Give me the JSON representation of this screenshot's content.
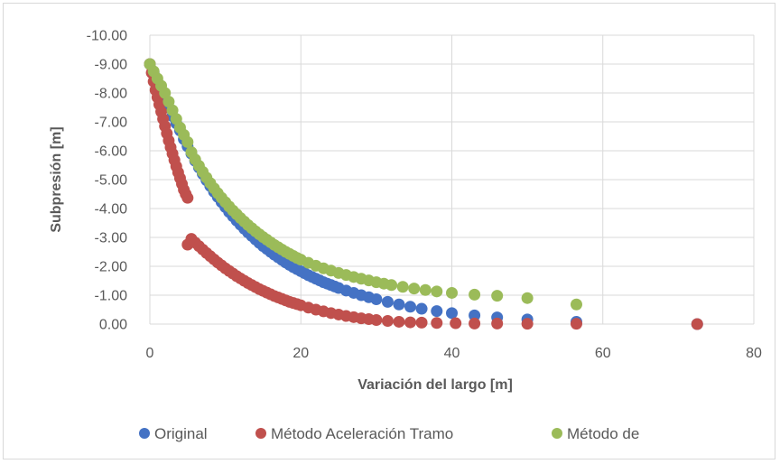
{
  "chart_data": {
    "type": "scatter",
    "title": "",
    "xlabel": "Variación del largo [m]",
    "ylabel": "Subpresión [m]",
    "xlim": [
      0,
      80
    ],
    "ylim": [
      0,
      -10
    ],
    "y_axis_reversed": true,
    "grid": true,
    "legend_position": "bottom",
    "x_ticks": [
      "0",
      "20",
      "40",
      "60",
      "80"
    ],
    "y_ticks": [
      "0.00",
      "-1.00",
      "-2.00",
      "-3.00",
      "-4.00",
      "-5.00",
      "-6.00",
      "-7.00",
      "-8.00",
      "-9.00",
      "-10.00"
    ],
    "series": [
      {
        "name": "Original",
        "color": "#4472c4",
        "points": [
          [
            0,
            -9.0
          ],
          [
            0.5,
            -8.7
          ],
          [
            1.0,
            -8.4
          ],
          [
            1.5,
            -8.1
          ],
          [
            2.0,
            -7.8
          ],
          [
            2.5,
            -7.5
          ],
          [
            3.0,
            -7.2
          ],
          [
            3.5,
            -6.95
          ],
          [
            4.0,
            -6.7
          ],
          [
            4.5,
            -6.4
          ],
          [
            5.0,
            -6.15
          ],
          [
            5.5,
            -5.9
          ],
          [
            6.0,
            -5.65
          ],
          [
            6.5,
            -5.42
          ],
          [
            7.0,
            -5.2
          ],
          [
            7.5,
            -4.98
          ],
          [
            8.0,
            -4.78
          ],
          [
            8.5,
            -4.58
          ],
          [
            9.0,
            -4.4
          ],
          [
            9.5,
            -4.22
          ],
          [
            10.0,
            -4.05
          ],
          [
            10.5,
            -3.88
          ],
          [
            11.0,
            -3.73
          ],
          [
            11.5,
            -3.58
          ],
          [
            12.0,
            -3.44
          ],
          [
            12.5,
            -3.3
          ],
          [
            13.0,
            -3.17
          ],
          [
            13.5,
            -3.05
          ],
          [
            14.0,
            -2.93
          ],
          [
            14.5,
            -2.81
          ],
          [
            15.0,
            -2.7
          ],
          [
            15.5,
            -2.6
          ],
          [
            16.0,
            -2.5
          ],
          [
            16.5,
            -2.4
          ],
          [
            17.0,
            -2.31
          ],
          [
            17.5,
            -2.22
          ],
          [
            18.0,
            -2.13
          ],
          [
            18.5,
            -2.05
          ],
          [
            19.0,
            -1.97
          ],
          [
            19.5,
            -1.9
          ],
          [
            20.0,
            -1.83
          ],
          [
            20.5,
            -1.76
          ],
          [
            21.0,
            -1.69
          ],
          [
            21.5,
            -1.63
          ],
          [
            22.0,
            -1.57
          ],
          [
            22.5,
            -1.51
          ],
          [
            23.0,
            -1.45
          ],
          [
            23.5,
            -1.4
          ],
          [
            24.0,
            -1.35
          ],
          [
            24.5,
            -1.3
          ],
          [
            25.0,
            -1.25
          ],
          [
            26.0,
            -1.16
          ],
          [
            27.0,
            -1.08
          ],
          [
            28.0,
            -1.0
          ],
          [
            29.0,
            -0.93
          ],
          [
            30.0,
            -0.86
          ],
          [
            31.5,
            -0.77
          ],
          [
            33.0,
            -0.68
          ],
          [
            34.5,
            -0.6
          ],
          [
            36.0,
            -0.53
          ],
          [
            38.0,
            -0.45
          ],
          [
            40.0,
            -0.38
          ],
          [
            43.0,
            -0.3
          ],
          [
            46.0,
            -0.23
          ],
          [
            50.0,
            -0.16
          ],
          [
            56.5,
            -0.08
          ],
          [
            72.5,
            0.0
          ]
        ]
      },
      {
        "name": "Método Aceleración Tramo",
        "color": "#c0504d",
        "points": [
          [
            0,
            -9.0
          ],
          [
            0.25,
            -8.7
          ],
          [
            0.5,
            -8.4
          ],
          [
            0.75,
            -8.1
          ],
          [
            1.0,
            -7.85
          ],
          [
            1.25,
            -7.6
          ],
          [
            1.5,
            -7.35
          ],
          [
            1.75,
            -7.1
          ],
          [
            2.0,
            -6.85
          ],
          [
            2.25,
            -6.6
          ],
          [
            2.5,
            -6.35
          ],
          [
            2.75,
            -6.12
          ],
          [
            3.0,
            -5.9
          ],
          [
            3.25,
            -5.68
          ],
          [
            3.5,
            -5.46
          ],
          [
            3.75,
            -5.25
          ],
          [
            4.0,
            -5.05
          ],
          [
            4.25,
            -4.85
          ],
          [
            4.5,
            -4.65
          ],
          [
            4.75,
            -4.5
          ],
          [
            5.0,
            -4.37
          ],
          [
            5.0,
            -2.75
          ],
          [
            5.5,
            -2.95
          ],
          [
            6.0,
            -2.82
          ],
          [
            6.5,
            -2.7
          ],
          [
            7.0,
            -2.58
          ],
          [
            7.5,
            -2.46
          ],
          [
            8.0,
            -2.35
          ],
          [
            8.5,
            -2.24
          ],
          [
            9.0,
            -2.13
          ],
          [
            9.5,
            -2.03
          ],
          [
            10.0,
            -1.93
          ],
          [
            10.5,
            -1.84
          ],
          [
            11.0,
            -1.75
          ],
          [
            11.5,
            -1.66
          ],
          [
            12.0,
            -1.58
          ],
          [
            12.5,
            -1.5
          ],
          [
            13.0,
            -1.42
          ],
          [
            13.5,
            -1.35
          ],
          [
            14.0,
            -1.28
          ],
          [
            14.5,
            -1.21
          ],
          [
            15.0,
            -1.15
          ],
          [
            15.5,
            -1.09
          ],
          [
            16.0,
            -1.03
          ],
          [
            16.5,
            -0.97
          ],
          [
            17.0,
            -0.92
          ],
          [
            17.5,
            -0.87
          ],
          [
            18.0,
            -0.82
          ],
          [
            18.5,
            -0.77
          ],
          [
            19.0,
            -0.73
          ],
          [
            19.5,
            -0.69
          ],
          [
            20.0,
            -0.65
          ],
          [
            21.0,
            -0.57
          ],
          [
            22.0,
            -0.5
          ],
          [
            23.0,
            -0.44
          ],
          [
            24.0,
            -0.38
          ],
          [
            25.0,
            -0.33
          ],
          [
            26.0,
            -0.28
          ],
          [
            27.0,
            -0.24
          ],
          [
            28.0,
            -0.2
          ],
          [
            29.0,
            -0.17
          ],
          [
            30.0,
            -0.14
          ],
          [
            31.5,
            -0.11
          ],
          [
            33.0,
            -0.08
          ],
          [
            34.5,
            -0.06
          ],
          [
            36.0,
            -0.05
          ],
          [
            38.0,
            -0.04
          ],
          [
            40.5,
            -0.03
          ],
          [
            43.0,
            -0.02
          ],
          [
            46.0,
            -0.02
          ],
          [
            50.0,
            -0.01
          ],
          [
            56.5,
            -0.01
          ],
          [
            72.5,
            0.0
          ]
        ]
      },
      {
        "name": "Método de",
        "color": "#9bbb59",
        "points": [
          [
            0,
            -9.0
          ],
          [
            0.5,
            -8.75
          ],
          [
            1.0,
            -8.5
          ],
          [
            1.5,
            -8.25
          ],
          [
            2.0,
            -8.0
          ],
          [
            2.5,
            -7.7
          ],
          [
            3.0,
            -7.4
          ],
          [
            3.5,
            -7.1
          ],
          [
            4.0,
            -6.8
          ],
          [
            4.5,
            -6.55
          ],
          [
            5.0,
            -6.3
          ],
          [
            5.5,
            -5.95
          ],
          [
            6.0,
            -5.7
          ],
          [
            6.5,
            -5.48
          ],
          [
            7.0,
            -5.27
          ],
          [
            7.5,
            -5.07
          ],
          [
            8.0,
            -4.88
          ],
          [
            8.5,
            -4.7
          ],
          [
            9.0,
            -4.53
          ],
          [
            9.5,
            -4.37
          ],
          [
            10.0,
            -4.22
          ],
          [
            10.5,
            -4.07
          ],
          [
            11.0,
            -3.93
          ],
          [
            11.5,
            -3.8
          ],
          [
            12.0,
            -3.67
          ],
          [
            12.5,
            -3.55
          ],
          [
            13.0,
            -3.43
          ],
          [
            13.5,
            -3.32
          ],
          [
            14.0,
            -3.21
          ],
          [
            14.5,
            -3.11
          ],
          [
            15.0,
            -3.01
          ],
          [
            15.5,
            -2.92
          ],
          [
            16.0,
            -2.83
          ],
          [
            16.5,
            -2.74
          ],
          [
            17.0,
            -2.66
          ],
          [
            17.5,
            -2.58
          ],
          [
            18.0,
            -2.5
          ],
          [
            18.5,
            -2.43
          ],
          [
            19.0,
            -2.36
          ],
          [
            19.5,
            -2.29
          ],
          [
            20.0,
            -2.23
          ],
          [
            21.0,
            -2.12
          ],
          [
            22.0,
            -2.02
          ],
          [
            23.0,
            -1.93
          ],
          [
            24.0,
            -1.85
          ],
          [
            25.0,
            -1.77
          ],
          [
            26.0,
            -1.7
          ],
          [
            27.0,
            -1.63
          ],
          [
            28.0,
            -1.57
          ],
          [
            29.0,
            -1.51
          ],
          [
            30.0,
            -1.45
          ],
          [
            31.0,
            -1.4
          ],
          [
            32.0,
            -1.35
          ],
          [
            33.5,
            -1.29
          ],
          [
            35.0,
            -1.23
          ],
          [
            36.5,
            -1.18
          ],
          [
            38.0,
            -1.13
          ],
          [
            40.0,
            -1.08
          ],
          [
            43.0,
            -1.02
          ],
          [
            46.0,
            -0.98
          ],
          [
            50.0,
            -0.9
          ],
          [
            56.5,
            -0.68
          ]
        ]
      }
    ]
  }
}
